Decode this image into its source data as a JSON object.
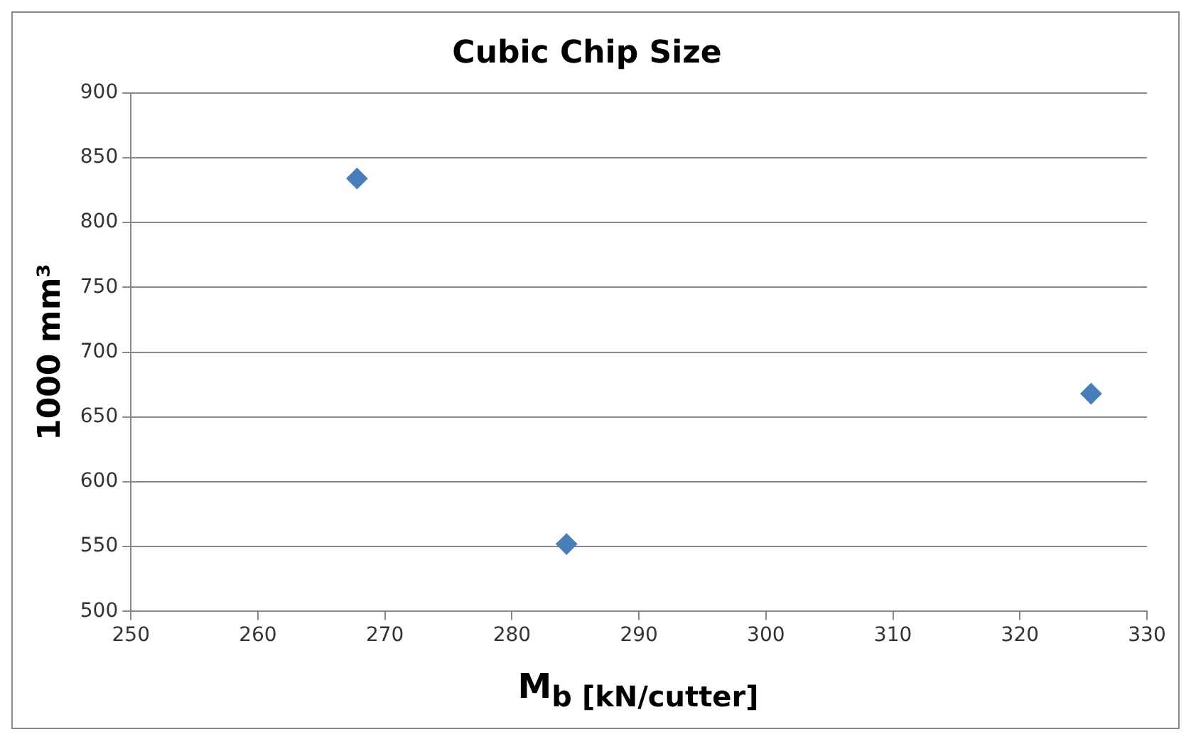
{
  "chart_data": {
    "type": "scatter",
    "title": "Cubic Chip Size",
    "xlabel": "M$_{b [kN/cutter]}$",
    "ylabel": "1000 mm³",
    "x": [
      267.8,
      284.3,
      325.6
    ],
    "series": [
      {
        "color": "#4a7ebb",
        "values": [
          834,
          552,
          668
        ]
      }
    ],
    "xlim": [
      250,
      330
    ],
    "xticks": [
      250,
      260,
      270,
      280,
      290,
      300,
      310,
      320,
      330
    ],
    "ylim": [
      500,
      900
    ],
    "yticks": [
      500,
      550,
      600,
      650,
      700,
      750,
      800,
      850,
      900
    ],
    "grid": "y",
    "legend": false,
    "marker": "diamond"
  }
}
